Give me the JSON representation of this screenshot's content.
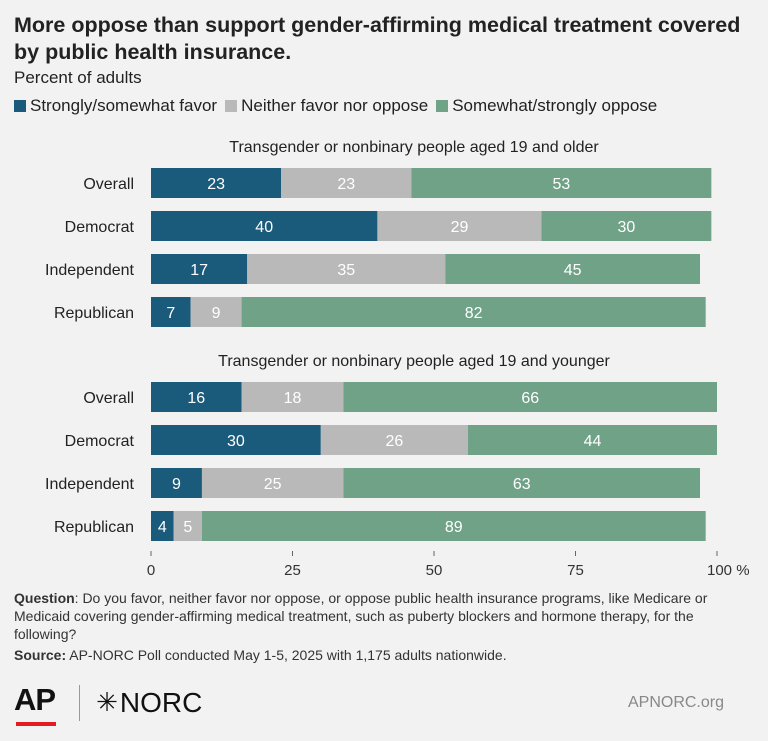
{
  "header": {
    "title": "More oppose than support gender-affirming medical treatment covered by public health insurance.",
    "subtitle": "Percent of adults"
  },
  "legend": [
    {
      "label": "Strongly/somewhat favor",
      "color": "#1a5a7a"
    },
    {
      "label": "Neither favor nor oppose",
      "color": "#b9b9b9"
    },
    {
      "label": "Somewhat/strongly oppose",
      "color": "#6fa287"
    }
  ],
  "chart_data": {
    "type": "bar",
    "orientation": "horizontal",
    "stacked": true,
    "xlim": [
      0,
      100
    ],
    "x_ticks": [
      "0",
      "25",
      "50",
      "75",
      "100 %"
    ],
    "series": [
      {
        "name": "Strongly/somewhat favor",
        "color": "#1a5a7a"
      },
      {
        "name": "Neither favor nor oppose",
        "color": "#b9b9b9"
      },
      {
        "name": "Somewhat/strongly oppose",
        "color": "#6fa287"
      }
    ],
    "panels": [
      {
        "heading": "Transgender or nonbinary people aged 19 and older",
        "categories": [
          "Overall",
          "Democrat",
          "Independent",
          "Republican"
        ],
        "values": [
          [
            23,
            23,
            53
          ],
          [
            40,
            29,
            30
          ],
          [
            17,
            35,
            45
          ],
          [
            7,
            9,
            82
          ]
        ]
      },
      {
        "heading": "Transgender or nonbinary people aged 19 and younger",
        "categories": [
          "Overall",
          "Democrat",
          "Independent",
          "Republican"
        ],
        "values": [
          [
            16,
            18,
            66
          ],
          [
            30,
            26,
            44
          ],
          [
            9,
            25,
            63
          ],
          [
            4,
            5,
            89
          ]
        ]
      }
    ]
  },
  "footer": {
    "question_label": "Question",
    "question_text": ": Do you favor, neither favor nor oppose, or oppose public health insurance programs, like Medicare or Medicaid covering gender-affirming medical treatment, such as puberty blockers and hormone therapy, for the following?",
    "source_label": "Source:",
    "source_text": " AP-NORC Poll conducted May 1-5, 2025 with 1,175 adults nationwide.",
    "logo_ap": "AP",
    "logo_norc": "NORC",
    "site": "APNORC.org"
  }
}
